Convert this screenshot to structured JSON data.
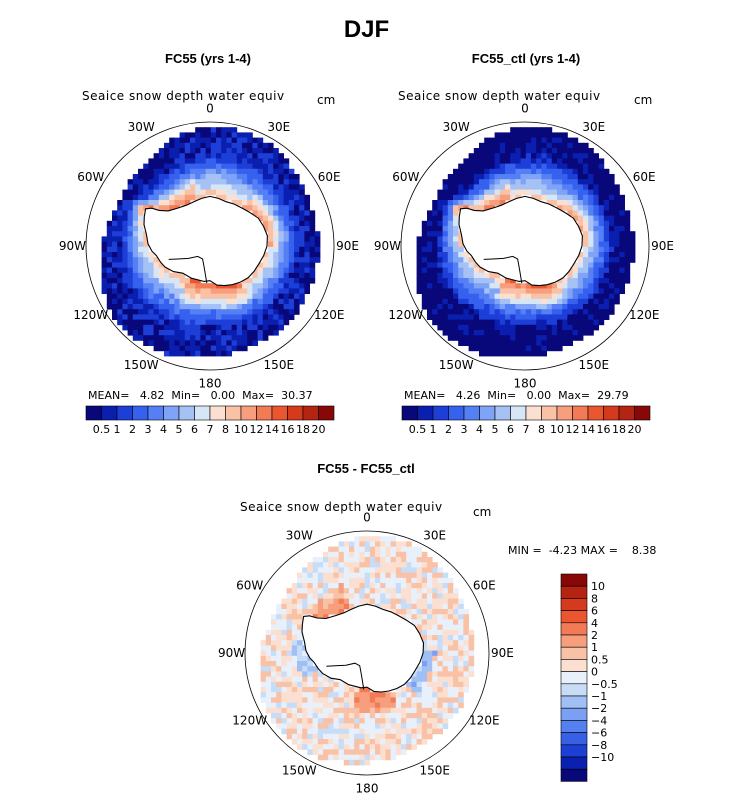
{
  "title": "DJF",
  "palette_abs": [
    "#08087a",
    "#0a1fb0",
    "#1d3fd8",
    "#3661ee",
    "#5580f5",
    "#7ea3f7",
    "#a6c2f5",
    "#d6e6f7",
    "#fbe0d2",
    "#f9c1a5",
    "#f79f7d",
    "#f27a55",
    "#ea5630",
    "#d53a1c",
    "#b52412",
    "#880808"
  ],
  "palette_diff": [
    "#880808",
    "#b52412",
    "#d53a1c",
    "#ea5630",
    "#f27a55",
    "#f79f7d",
    "#f9c1a5",
    "#fbe0d2",
    "#e8f1fb",
    "#c7dcf6",
    "#a0c0f5",
    "#7a9ff3",
    "#5580f0",
    "#3660e6",
    "#1c3fd4",
    "#0a20b0",
    "#08087a"
  ],
  "chart_data": [
    {
      "type": "heatmap",
      "projection": "south-polar-stereographic",
      "title": "FC55 (yrs 1-4)",
      "variable": "Seaice snow depth water equiv",
      "units": "cm",
      "lon_labels": [
        "0",
        "30E",
        "60E",
        "90E",
        "120E",
        "150E",
        "180",
        "150W",
        "120W",
        "90W",
        "60W",
        "30W"
      ],
      "stats": {
        "mean_label": "MEAN=",
        "mean": "4.82",
        "min_label": "Min=",
        "min": "0.00",
        "max_label": "Max=",
        "max": "30.37"
      },
      "colorbar_levels": [
        "0.5",
        "1",
        "2",
        "3",
        "4",
        "5",
        "6",
        "7",
        "8",
        "10",
        "12",
        "14",
        "16",
        "18",
        "20"
      ]
    },
    {
      "type": "heatmap",
      "projection": "south-polar-stereographic",
      "title": "FC55_ctl (yrs 1-4)",
      "variable": "Seaice snow depth water equiv",
      "units": "cm",
      "lon_labels": [
        "0",
        "30E",
        "60E",
        "90E",
        "120E",
        "150E",
        "180",
        "150W",
        "120W",
        "90W",
        "60W",
        "30W"
      ],
      "stats": {
        "mean_label": "MEAN=",
        "mean": "4.26",
        "min_label": "Min=",
        "min": "0.00",
        "max_label": "Max=",
        "max": "29.79"
      },
      "colorbar_levels": [
        "0.5",
        "1",
        "2",
        "3",
        "4",
        "5",
        "6",
        "7",
        "8",
        "10",
        "12",
        "14",
        "16",
        "18",
        "20"
      ]
    },
    {
      "type": "heatmap",
      "projection": "south-polar-stereographic",
      "title": "FC55 - FC55_ctl",
      "variable": "Seaice snow depth water equiv",
      "units": "cm",
      "lon_labels": [
        "0",
        "30E",
        "60E",
        "90E",
        "120E",
        "150E",
        "180",
        "150W",
        "120W",
        "90W",
        "60W",
        "30W"
      ],
      "stats": {
        "min_label": "MIN =",
        "min": "-4.23",
        "max_label": "MAX =",
        "max": "8.38"
      },
      "colorbar_levels": [
        "10",
        "8",
        "6",
        "4",
        "2",
        "1",
        "0.5",
        "0",
        "−0.5",
        "−1",
        "−2",
        "−4",
        "−6",
        "−8",
        "−10"
      ]
    }
  ]
}
